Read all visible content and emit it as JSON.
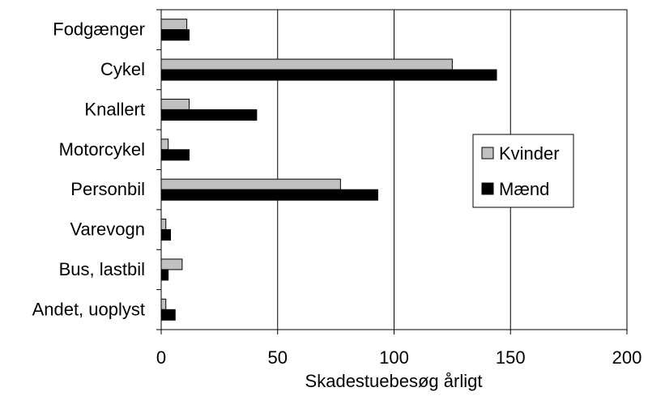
{
  "chart_data": {
    "type": "bar",
    "orientation": "horizontal",
    "categories": [
      "Fodgænger",
      "Cykel",
      "Knallert",
      "Motorcykel",
      "Personbil",
      "Varevogn",
      "Bus, lastbil",
      "Andet, uoplyst"
    ],
    "series": [
      {
        "name": "Kvinder",
        "color": "#c0c0c0",
        "values": [
          11,
          125,
          12,
          3,
          77,
          2,
          9,
          2
        ]
      },
      {
        "name": "Mænd",
        "color": "#000000",
        "values": [
          12,
          144,
          41,
          12,
          93,
          4,
          3,
          6
        ]
      }
    ],
    "title": "",
    "xlabel": "Skadestuebesøg årligt",
    "ylabel": "",
    "xlim": [
      0,
      200
    ],
    "xticks": [
      "0",
      "50",
      "100",
      "150",
      "200"
    ],
    "grid": "vertical",
    "legend_position": "right"
  }
}
